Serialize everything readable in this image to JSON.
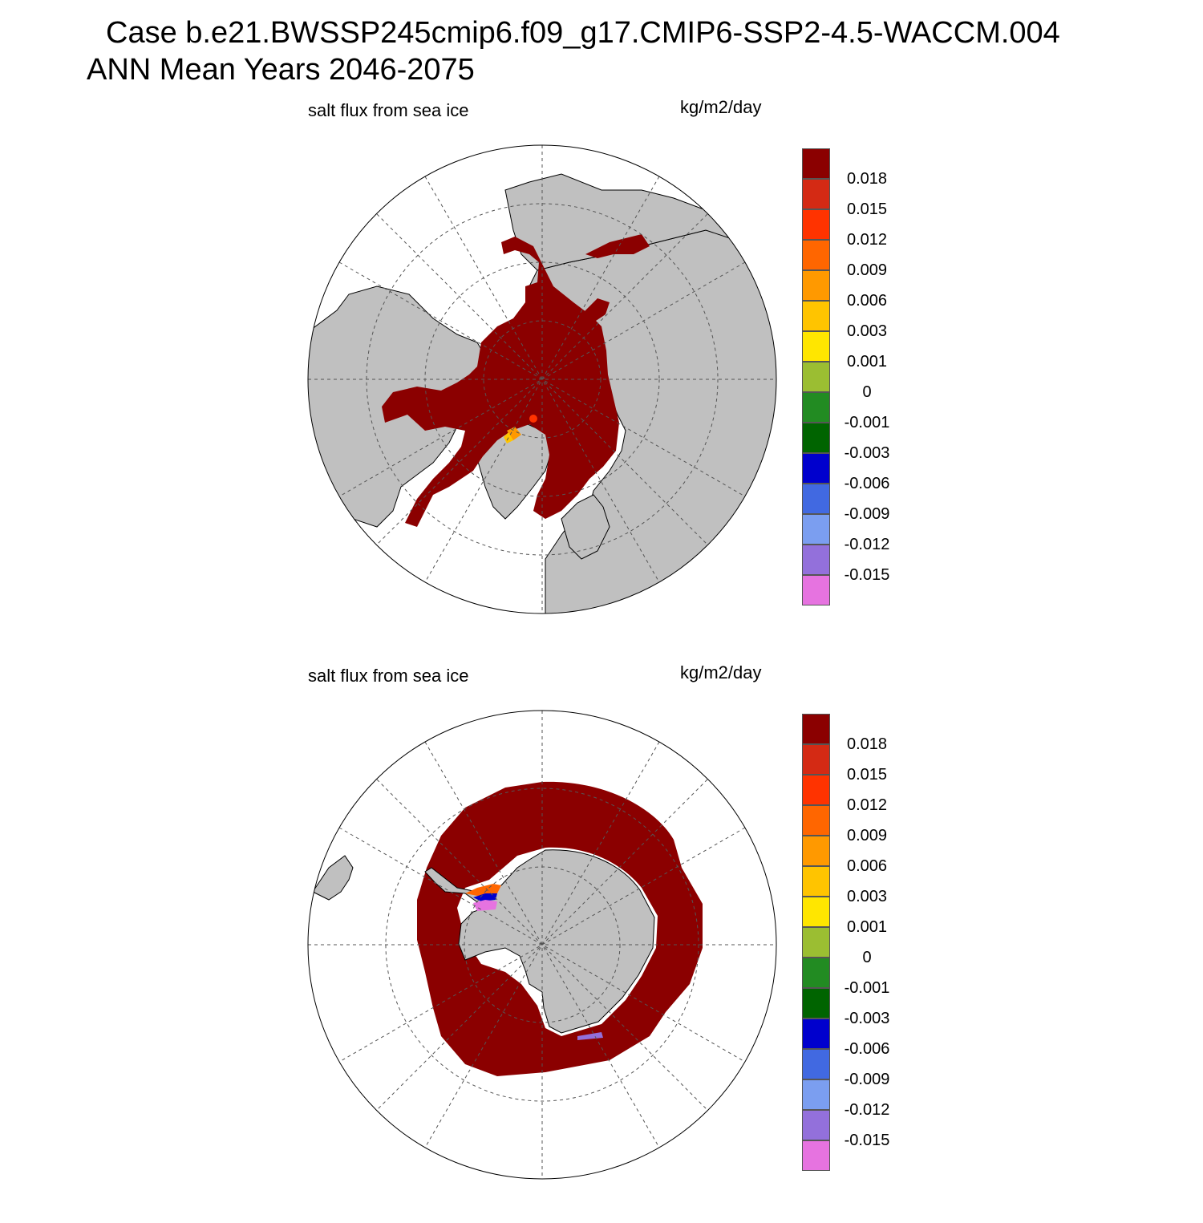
{
  "figure": {
    "title_line1": "Case b.e21.BWSSP245cmip6.f09_g17.CMIP6-SSP2-4.5-WACCM.004",
    "title_line2": "ANN Mean    Years 2046-2075"
  },
  "panels": [
    {
      "hemisphere": "north",
      "variable_label": "salt flux from sea ice",
      "units_label": "kg/m2/day"
    },
    {
      "hemisphere": "south",
      "variable_label": "salt flux from sea ice",
      "units_label": "kg/m2/day"
    }
  ],
  "colorbar": {
    "colors": [
      "#8b0000",
      "#d42a14",
      "#ff3300",
      "#ff6600",
      "#ff9900",
      "#ffc400",
      "#ffe600",
      "#9bbe32",
      "#228b22",
      "#006400",
      "#0000cd",
      "#4169e1",
      "#7b9ef0",
      "#9370db",
      "#e673e0"
    ],
    "tick_labels": [
      "0.018",
      "0.015",
      "0.012",
      "0.009",
      "0.006",
      "0.003",
      "0.001",
      "0",
      "-0.001",
      "-0.003",
      "-0.006",
      "-0.009",
      "-0.012",
      "-0.015"
    ]
  },
  "map_style": {
    "ocean_color": "#ffffff",
    "land_color": "#c0c0c0",
    "ice_flux_color": "#8b0000",
    "grid_line_color": "#555555"
  }
}
